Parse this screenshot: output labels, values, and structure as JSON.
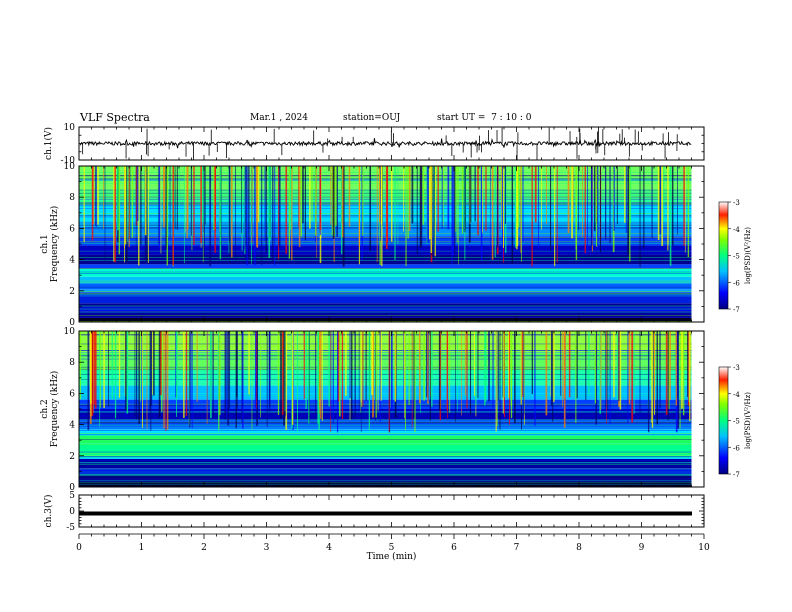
{
  "header": {
    "title": "VLF Spectra",
    "date": "Mar.1 , 2024",
    "station": "station=OUJ",
    "start": "start UT =  7 : 10 : 0"
  },
  "chart_data": [
    {
      "type": "line",
      "panel": "ch1-waveform",
      "ylabel": "ch.1(V)",
      "ylim": [
        -10,
        10
      ],
      "yticks": [
        "10",
        "-10"
      ],
      "xlim": [
        0,
        10
      ],
      "series_color": "#000000",
      "baseline": 0
    },
    {
      "type": "heatmap",
      "panel": "ch1-spectrogram",
      "ylabel": "ch.1\nFrequency (kHz)",
      "ylabel_top": "ch.1",
      "ylabel_bottom": "Frequency (kHz)",
      "ylim": [
        0,
        10
      ],
      "yticks": [
        "0",
        "2",
        "4",
        "6",
        "8",
        "10"
      ],
      "xlim": [
        0,
        10
      ],
      "data_end_min": 9.8,
      "colorbar": {
        "label": "log(PSD)(V²/Hz)",
        "range": [
          -7,
          -3
        ],
        "ticks": [
          "-3",
          "-4",
          "-5",
          "-6",
          "-7"
        ]
      }
    },
    {
      "type": "heatmap",
      "panel": "ch2-spectrogram",
      "ylabel_top": "ch.2",
      "ylabel_bottom": "Frequency (kHz)",
      "ylim": [
        0,
        10
      ],
      "yticks": [
        "0",
        "2",
        "4",
        "6",
        "8",
        "10"
      ],
      "xlim": [
        0,
        10
      ],
      "data_end_min": 9.8,
      "colorbar": {
        "label": "log(PSD)(V²/Hz)",
        "range": [
          -7,
          -3
        ],
        "ticks": [
          "-3",
          "-4",
          "-5",
          "-6",
          "-7"
        ]
      }
    },
    {
      "type": "line",
      "panel": "ch3-waveform",
      "ylabel": "ch.3(V)",
      "ylim": [
        -5,
        5
      ],
      "yticks": [
        "5",
        "0",
        "-5"
      ],
      "xlim": [
        0,
        10
      ],
      "level": -0.8,
      "xlabel": "Time (min)",
      "xticks": [
        "0",
        "1",
        "2",
        "3",
        "4",
        "5",
        "6",
        "7",
        "8",
        "9",
        "10"
      ]
    }
  ],
  "colors": {
    "scale": [
      "#000080",
      "#0000ff",
      "#0080ff",
      "#00ffff",
      "#00ff80",
      "#80ff00",
      "#ffff00",
      "#ff8000",
      "#ff0000",
      "#ffffff"
    ]
  }
}
